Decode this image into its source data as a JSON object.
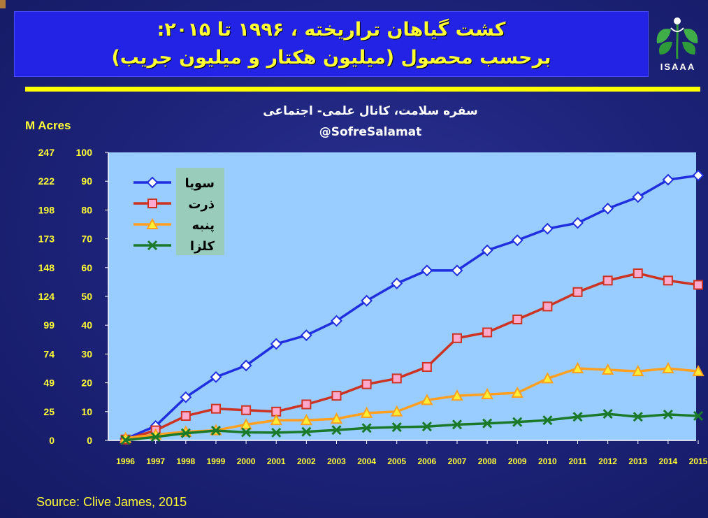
{
  "slide": {
    "title_line1": "کشت گیاهان تراریخته ، ۱۹۹۶ تا ۲۰۱۵:",
    "title_line2": "برحسب محصول (میلیون هکتار و میلیون جریب)",
    "logo_text": "ISAAA",
    "watermark_line1": "سفره سلامت، کانال علمی- اجتماعی",
    "watermark_line2": "@SofreSalamat",
    "source": "Source: Clive James, 2015",
    "colors": {
      "background": "#1b2175",
      "title_box": "#2323e6",
      "title_text": "#ffff33",
      "plot_area": "#99ccff",
      "axis_text": "#ffff33"
    }
  },
  "chart_data": {
    "type": "line",
    "title": "کشت گیاهان تراریخته ، ۱۹۹۶ تا ۲۰۱۵: برحسب محصول (میلیون هکتار و میلیون جریب)",
    "x": [
      1996,
      1997,
      1998,
      1999,
      2000,
      2001,
      2002,
      2003,
      2004,
      2005,
      2006,
      2007,
      2008,
      2009,
      2010,
      2011,
      2012,
      2013,
      2014,
      2015
    ],
    "ylim": [
      0,
      100
    ],
    "y_ticks": [
      0,
      10,
      20,
      30,
      40,
      50,
      60,
      70,
      80,
      90,
      100
    ],
    "secondary_axis_label": "M Acres",
    "secondary_ticks": [
      "0",
      "25",
      "49",
      "74",
      "99",
      "124",
      "148",
      "173",
      "198",
      "222",
      "247"
    ],
    "grid": false,
    "legend_position": "top-left",
    "series": [
      {
        "name": "سویا",
        "color": "#1f2fe0",
        "marker": "diamond",
        "values": [
          0.5,
          5,
          15,
          22,
          26,
          33.5,
          36.5,
          41.5,
          48.5,
          54.5,
          59,
          59,
          66,
          69.5,
          73.5,
          75.5,
          80.5,
          84.5,
          90.5,
          92
        ]
      },
      {
        "name": "ذرت",
        "color": "#cc3322",
        "marker": "square",
        "values": [
          0.3,
          3.5,
          8.5,
          11,
          10.5,
          10,
          12.5,
          15.5,
          19.5,
          21.5,
          25.5,
          35.5,
          37.5,
          42,
          46.5,
          51.5,
          55.5,
          58,
          55.5,
          54
        ]
      },
      {
        "name": "پنبه",
        "color": "#ffa020",
        "marker": "triangle",
        "values": [
          0.8,
          2,
          3,
          3.5,
          5.5,
          7,
          7,
          7.5,
          9.5,
          10,
          14,
          15.5,
          16,
          16.5,
          21.5,
          25,
          24.5,
          24,
          25,
          24
        ]
      },
      {
        "name": "کلزا",
        "color": "#1a7a2a",
        "marker": "x",
        "values": [
          0.1,
          1.2,
          2.5,
          3.4,
          2.8,
          2.7,
          3,
          3.6,
          4.3,
          4.6,
          4.8,
          5.5,
          5.9,
          6.4,
          7,
          8.2,
          9.2,
          8.2,
          9,
          8.5
        ]
      }
    ]
  }
}
